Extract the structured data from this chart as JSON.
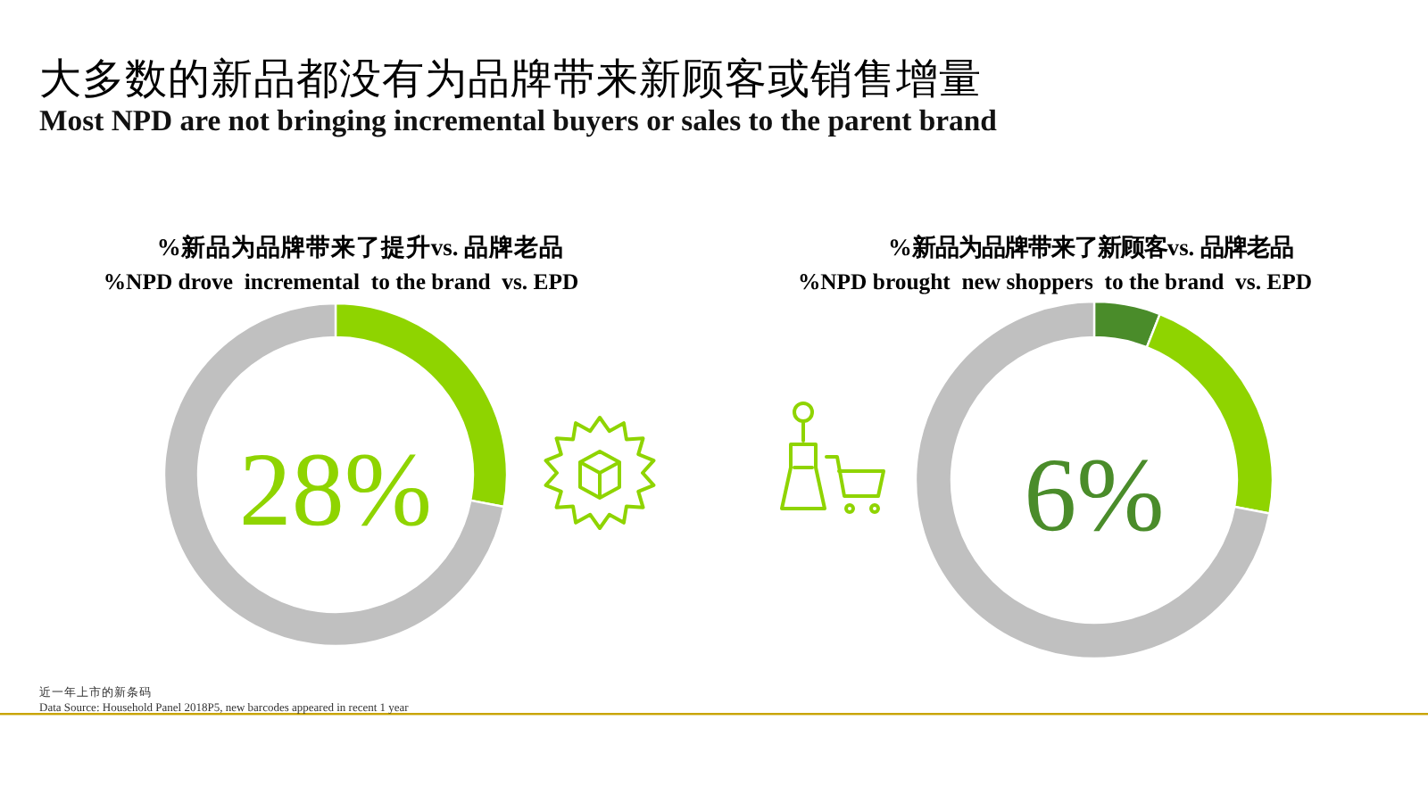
{
  "chart_data": [
    {
      "type": "other",
      "title": "大多数的新品都没有为品牌带来新顾客或销售增量",
      "subtitle": "Most NPD are not bringing incremental buyers or sales to the parent brand",
      "annotations": [
        "近一年上市的新条码",
        "Data Source: Household Panel 2018P5, new barcodes appeared in recent 1 year"
      ]
    },
    {
      "type": "donut",
      "title": "%新品为品牌带来了提升vs. 品牌老品",
      "subtitle": "%NPD drove  incremental  to the brand  vs. EPD",
      "categories": [
        null,
        null
      ],
      "values": [
        28,
        72
      ],
      "colors": [
        "#8fd400",
        "#c0c0c0"
      ],
      "annotations": [
        "28%"
      ]
    },
    {
      "type": "donut",
      "title": "%新品为品牌带来了新顾客vs. 品牌老品",
      "subtitle": "%NPD brought  new shoppers  to the brand  vs. EPD",
      "categories": [
        null,
        null,
        null
      ],
      "values": [
        6,
        22,
        72
      ],
      "colors": [
        "#4a8c2a",
        "#8fd400",
        "#c0c0c0"
      ],
      "annotations": [
        "6%"
      ]
    }
  ]
}
